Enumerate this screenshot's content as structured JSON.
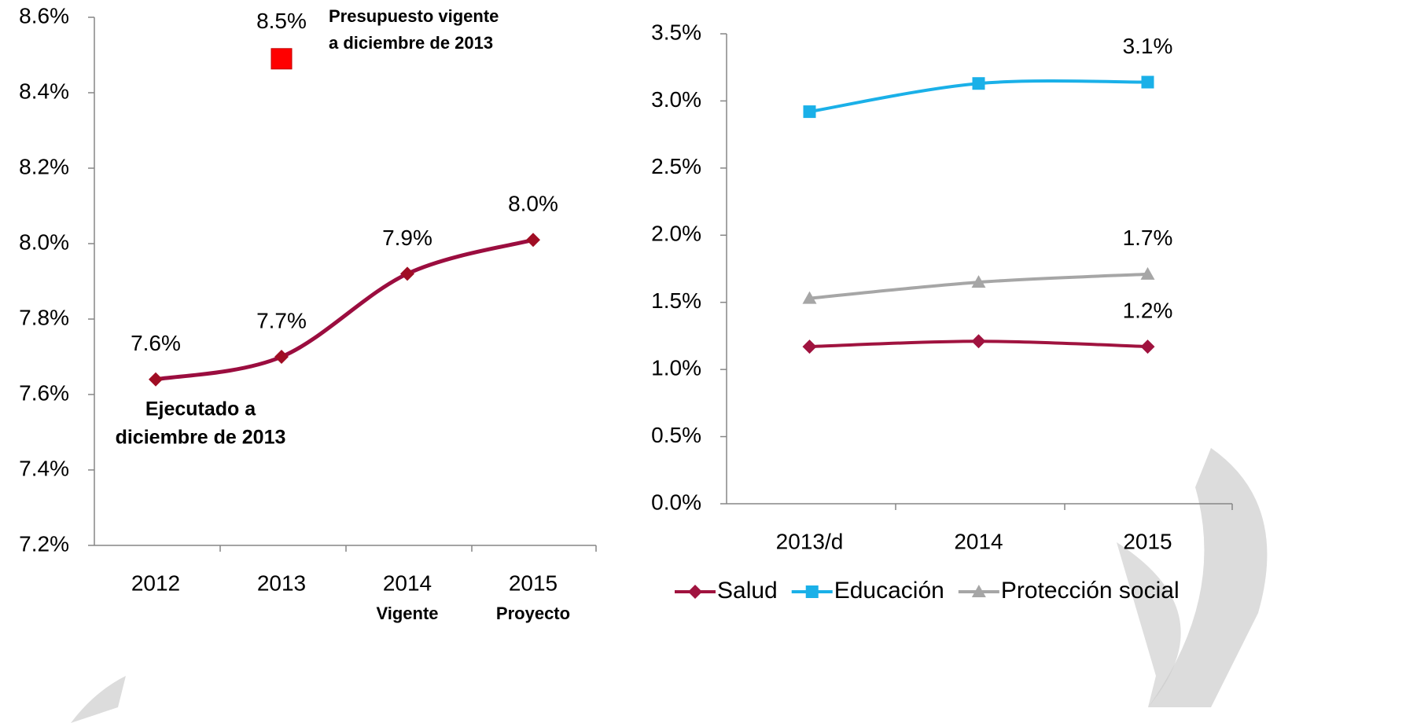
{
  "chart_data": [
    {
      "type": "line",
      "categories": [
        "2012",
        "2013",
        "2014",
        "2015"
      ],
      "category_notes": [
        null,
        null,
        "Vigente",
        "Proyecto"
      ],
      "ylim": [
        7.2,
        8.6
      ],
      "yticks": [
        {
          "value": 7.2,
          "label": "7.2%"
        },
        {
          "value": 7.4,
          "label": "7.4%"
        },
        {
          "value": 7.6,
          "label": "7.6%"
        },
        {
          "value": 7.8,
          "label": "7.8%"
        },
        {
          "value": 8.0,
          "label": "8.0%"
        },
        {
          "value": 8.2,
          "label": "8.2%"
        },
        {
          "value": 8.4,
          "label": "8.4%"
        },
        {
          "value": 8.6,
          "label": "8.6%"
        }
      ],
      "series": [
        {
          "color": "#9b0d3f",
          "marker": "diamond",
          "marker_color": "#a00d24",
          "line": true,
          "values": [
            7.64,
            7.7,
            7.92,
            8.01
          ],
          "value_labels": [
            "7.6%",
            "7.7%",
            "7.9%",
            "8.0%"
          ]
        },
        {
          "color": "#ff0000",
          "marker": "square",
          "marker_color": "#ff0000",
          "line": false,
          "values": [
            null,
            8.49,
            null,
            null
          ],
          "value_labels": [
            null,
            "8.5%",
            null,
            null
          ]
        }
      ],
      "annotations": [
        {
          "lines": [
            "Presupuesto vigente",
            "a diciembre de 2013"
          ]
        },
        {
          "lines": [
            "Ejecutado a",
            "diciembre de 2013"
          ]
        }
      ]
    },
    {
      "type": "line",
      "categories": [
        "2013/d",
        "2014",
        "2015"
      ],
      "ylim": [
        0,
        3.5
      ],
      "yticks": [
        {
          "value": 0,
          "label": "0.0%"
        },
        {
          "value": 0.5,
          "label": "0.5%"
        },
        {
          "value": 1.0,
          "label": "1.0%"
        },
        {
          "value": 1.5,
          "label": "1.5%"
        },
        {
          "value": 2.0,
          "label": "2.0%"
        },
        {
          "value": 2.5,
          "label": "2.5%"
        },
        {
          "value": 3.0,
          "label": "3.0%"
        },
        {
          "value": 3.5,
          "label": "3.5%"
        }
      ],
      "legend": "bottom",
      "series": [
        {
          "name": "Salud",
          "color": "#a0133f",
          "marker": "diamond",
          "marker_color": "#a0133f",
          "line": true,
          "values": [
            1.17,
            1.21,
            1.17
          ],
          "value_labels": [
            null,
            null,
            "1.2%"
          ]
        },
        {
          "name": "Educación",
          "color": "#1ab0e8",
          "marker": "square",
          "marker_color": "#1ab0e8",
          "line": true,
          "values": [
            2.92,
            3.13,
            3.14
          ],
          "value_labels": [
            null,
            null,
            "3.1%"
          ]
        },
        {
          "name": "Protección social",
          "color": "#a6a6a6",
          "marker": "triangle",
          "marker_color": "#a6a6a6",
          "line": true,
          "values": [
            1.53,
            1.65,
            1.71
          ],
          "value_labels": [
            null,
            null,
            "1.7%"
          ]
        }
      ]
    }
  ]
}
